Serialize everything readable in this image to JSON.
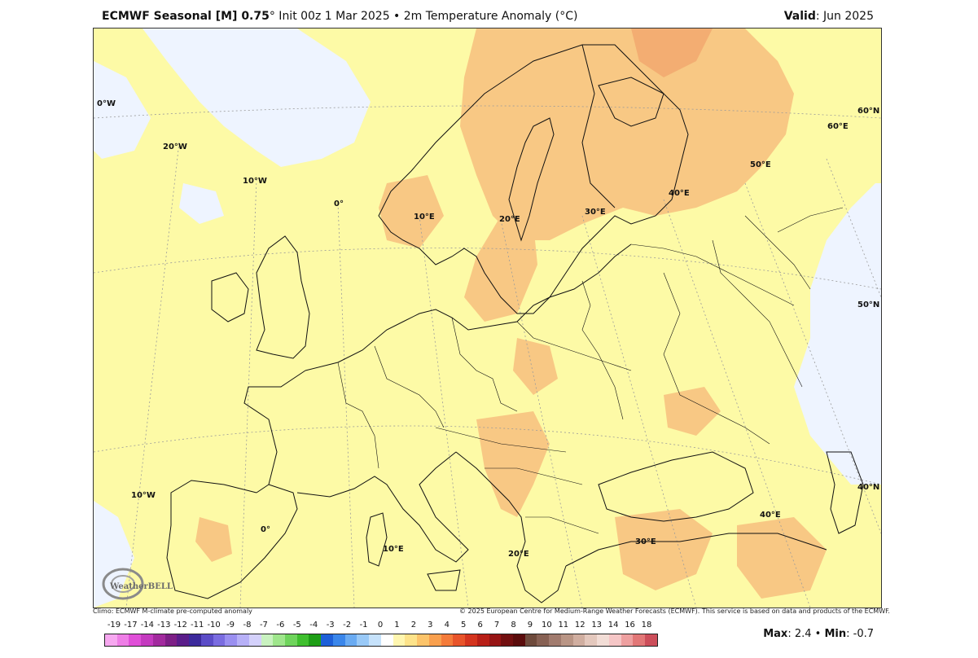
{
  "header": {
    "title_bold": "ECMWF Seasonal [M] 0.75",
    "title_rest": "° Init 00z 1 Mar 2025 • 2m Temperature Anomaly (°C)",
    "valid_label": "Valid",
    "valid_value": ": Jun 2025"
  },
  "map": {
    "region": "Europe",
    "variable": "2m Temperature Anomaly",
    "grid_labels": {
      "l_0w": "0°W",
      "l_20w_top": "20°W",
      "l_10w_top": "10°W",
      "l_0_top": "0°",
      "l_10e_top": "10°E",
      "l_20e_top": "20°E",
      "l_30e_top": "30°E",
      "l_40e_top": "40°E",
      "l_50e": "50°E",
      "l_60e": "60°E",
      "l_60n": "60°N",
      "l_50n": "50°N",
      "l_40n": "40°N",
      "l_10w_bot": "10°W",
      "l_0_bot": "0°",
      "l_10e_bot": "10°E",
      "l_20e_bot": "20°E",
      "l_30e_bot": "30°E",
      "l_40e_bot": "40°E"
    },
    "logo_text": "WeatherBELL",
    "colors": {
      "ocean_neutral": "#fdfaa6",
      "warm_1": "#fce391",
      "warm_2": "#f8c884",
      "cool": "#eef4ff",
      "land_edge": "#111111"
    }
  },
  "footer": {
    "climo_note": "Climo: ECMWF M-climate pre-computed anomaly",
    "copyright": "© 2025 European Centre for Medium-Range Weather Forecasts (ECMWF). This service is based on data and products of the ECMWF."
  },
  "colorbar": {
    "labels": [
      "-19",
      "-17",
      "-14",
      "-13",
      "-12",
      "-11",
      "-10",
      "-9",
      "-8",
      "-7",
      "-6",
      "-5",
      "-4",
      "-3",
      "-2",
      "-1",
      "0",
      "1",
      "2",
      "3",
      "4",
      "5",
      "6",
      "7",
      "8",
      "9",
      "10",
      "11",
      "12",
      "13",
      "14",
      "16",
      "18"
    ],
    "colors": [
      "#f7a8f0",
      "#ee7ee6",
      "#e04fd8",
      "#c43abf",
      "#a22a9e",
      "#7d1f86",
      "#5a1d8a",
      "#3c2a9c",
      "#5b4cc7",
      "#7a6ce0",
      "#9a8ff0",
      "#b7b0f7",
      "#d4d1fb",
      "#c9f2c0",
      "#9fe68c",
      "#6fd45c",
      "#3fbf2e",
      "#1e9e16",
      "#1d5fd8",
      "#3a86ea",
      "#6aabf2",
      "#99c9f7",
      "#c6e2fb",
      "#ffffff",
      "#fff6b0",
      "#fde38a",
      "#fcc46a",
      "#f9a04e",
      "#f47b3a",
      "#e8542a",
      "#d4341e",
      "#b81f17",
      "#961414",
      "#720f10",
      "#5a0c0c",
      "#6e4a3c",
      "#876154",
      "#a17b6e",
      "#b99585",
      "#d0aea0",
      "#e4c8bd",
      "#f2ddd6",
      "#f5c6c6",
      "#eea0a0",
      "#e27777",
      "#cc4e5a"
    ],
    "max_label": "Max",
    "max_value": ": 2.4 • ",
    "min_label": "Min",
    "min_value": ": -0.7"
  }
}
